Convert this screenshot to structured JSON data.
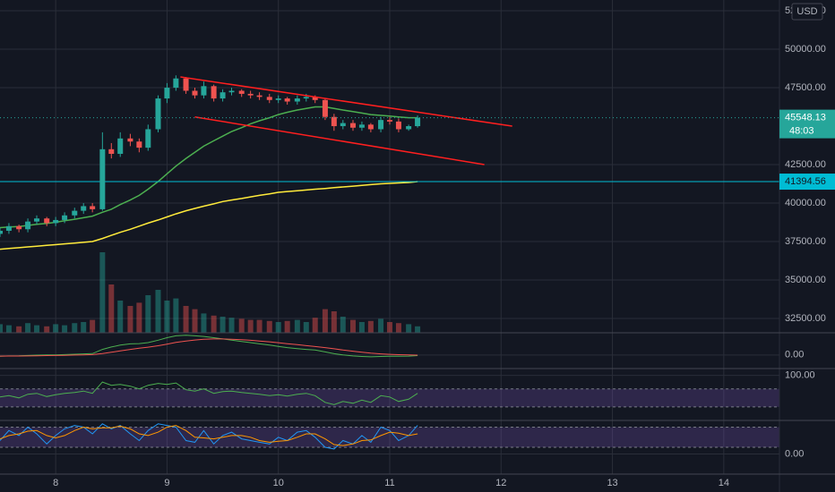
{
  "chart_data": {
    "type": "candlestick",
    "currency": "USD",
    "grid": true,
    "colors": {
      "up": "#26a69a",
      "down": "#ef5350"
    },
    "x": [
      7.5,
      7.58,
      7.67,
      7.75,
      7.83,
      7.92,
      8,
      8.08,
      8.17,
      8.25,
      8.33,
      8.42,
      8.5,
      8.58,
      8.67,
      8.75,
      8.83,
      8.92,
      9,
      9.08,
      9.17,
      9.25,
      9.33,
      9.42,
      9.5,
      9.58,
      9.67,
      9.75,
      9.83,
      9.92,
      10,
      10.08,
      10.17,
      10.25,
      10.33,
      10.42,
      10.5,
      10.58,
      10.67,
      10.75,
      10.83,
      10.92,
      11,
      11.08,
      11.17,
      11.25
    ],
    "open": [
      38000,
      38200,
      38500,
      38300,
      38800,
      39000,
      38700,
      38900,
      39200,
      39500,
      39800,
      39600,
      43500,
      43200,
      44200,
      44000,
      43600,
      44800,
      46800,
      47500,
      48100,
      47300,
      47000,
      47600,
      46800,
      47200,
      47300,
      47100,
      47000,
      46900,
      46700,
      46800,
      46600,
      46800,
      46900,
      46700,
      45600,
      45000,
      45200,
      44900,
      45100,
      44800,
      45400,
      45300,
      44800,
      45000
    ],
    "high": [
      38400,
      38700,
      38600,
      39000,
      39200,
      39100,
      39100,
      39400,
      39700,
      40000,
      40000,
      44600,
      43900,
      44600,
      44500,
      44200,
      45100,
      47000,
      47800,
      48300,
      48200,
      47500,
      47900,
      47700,
      47400,
      47500,
      47400,
      47300,
      47200,
      47100,
      47000,
      46900,
      47000,
      47100,
      47000,
      46800,
      45800,
      45400,
      45400,
      45300,
      45200,
      45600,
      45600,
      45500,
      45100,
      45700
    ],
    "low": [
      37800,
      38000,
      38100,
      38100,
      38600,
      38500,
      38500,
      38700,
      39000,
      39300,
      39400,
      39500,
      42900,
      43000,
      43700,
      43300,
      43400,
      44600,
      46500,
      47300,
      47100,
      46800,
      46800,
      46600,
      46600,
      47000,
      46900,
      46800,
      46700,
      46500,
      46500,
      46400,
      46400,
      46600,
      46500,
      45400,
      44700,
      44800,
      44700,
      44700,
      44600,
      44600,
      45100,
      44600,
      44700,
      44900
    ],
    "close": [
      38200,
      38500,
      38300,
      38800,
      39000,
      38700,
      38900,
      39200,
      39500,
      39800,
      39600,
      43500,
      43200,
      44200,
      44000,
      43600,
      44800,
      46800,
      47500,
      48100,
      47300,
      47000,
      47600,
      46800,
      47200,
      47300,
      47100,
      47000,
      46900,
      46700,
      46800,
      46600,
      46800,
      46900,
      46700,
      45600,
      45000,
      45200,
      44900,
      45100,
      44800,
      45400,
      45300,
      44800,
      45000,
      45548
    ],
    "volume": [
      8,
      7,
      6,
      9,
      7,
      6,
      8,
      7,
      9,
      10,
      12,
      75,
      45,
      30,
      25,
      28,
      35,
      40,
      30,
      32,
      25,
      22,
      18,
      16,
      15,
      14,
      13,
      12,
      12,
      11,
      10,
      11,
      12,
      10,
      14,
      22,
      20,
      15,
      12,
      10,
      11,
      13,
      10,
      9,
      8,
      6
    ],
    "moving_averages": [
      {
        "color": "#4caf50",
        "values": [
          38400,
          38450,
          38480,
          38550,
          38620,
          38680,
          38750,
          38850,
          38950,
          39050,
          39150,
          39400,
          39600,
          39900,
          40200,
          40500,
          40900,
          41400,
          41900,
          42400,
          42900,
          43300,
          43700,
          44050,
          44350,
          44650,
          44900,
          45150,
          45350,
          45550,
          45750,
          45900,
          46050,
          46150,
          46250,
          46250,
          46150,
          46050,
          45950,
          45850,
          45750,
          45700,
          45650,
          45600,
          45550,
          45550
        ]
      },
      {
        "color": "#ffeb3b",
        "values": [
          37000,
          37050,
          37100,
          37150,
          37200,
          37250,
          37300,
          37350,
          37400,
          37450,
          37500,
          37700,
          37900,
          38100,
          38300,
          38500,
          38700,
          38900,
          39100,
          39300,
          39500,
          39650,
          39800,
          39950,
          40100,
          40200,
          40300,
          40400,
          40500,
          40600,
          40700,
          40750,
          40800,
          40850,
          40900,
          40950,
          41000,
          41050,
          41100,
          41150,
          41200,
          41250,
          41280,
          41310,
          41340,
          41394
        ]
      }
    ],
    "trend_lines": [
      {
        "color": "#ff1f1f",
        "x": [
          9.12,
          12.1
        ],
        "y": [
          48200,
          45000
        ]
      },
      {
        "color": "#ff1f1f",
        "x": [
          9.25,
          11.85
        ],
        "y": [
          45600,
          42500
        ]
      }
    ],
    "price_lines": [
      {
        "value": 41394.56,
        "color": "#00bcd4"
      }
    ],
    "last_price": 45548.13,
    "countdown": "48:03",
    "xlim": [
      7.5,
      14.5
    ],
    "xticks": [
      8,
      9,
      10,
      11,
      12,
      13,
      14
    ],
    "ylim": [
      31570,
      53200
    ],
    "yticks": [
      {
        "value": 52500,
        "label": "52500.00"
      },
      {
        "value": 50000,
        "label": "50000.00"
      },
      {
        "value": 47500,
        "label": "47500.00"
      },
      {
        "value": 42500,
        "label": "42500.00"
      },
      {
        "value": 40000,
        "label": "40000.00"
      },
      {
        "value": 37500,
        "label": "37500.00"
      },
      {
        "value": 35000,
        "label": "35000.00"
      },
      {
        "value": 32500,
        "label": "32500.00"
      }
    ],
    "indicators": [
      {
        "type": "macd",
        "ylim": [
          -1100,
          1800
        ],
        "yticks": [
          {
            "value": 0,
            "label": "0.00"
          }
        ],
        "series": [
          {
            "color": "#4caf50",
            "values": [
              -100,
              -80,
              -70,
              -40,
              -10,
              0,
              10,
              30,
              60,
              90,
              110,
              450,
              650,
              800,
              900,
              920,
              1000,
              1200,
              1400,
              1550,
              1600,
              1550,
              1500,
              1400,
              1300,
              1200,
              1100,
              1000,
              900,
              800,
              700,
              600,
              520,
              450,
              400,
              250,
              100,
              0,
              -80,
              -120,
              -150,
              -120,
              -100,
              -110,
              -90,
              -50
            ]
          },
          {
            "color": "#ef5350",
            "values": [
              -90,
              -88,
              -84,
              -75,
              -62,
              -50,
              -38,
              -24,
              -7,
              12,
              31,
              115,
              222,
              337,
              450,
              544,
              635,
              750,
              880,
              1014,
              1131,
              1215,
              1272,
              1298,
              1298,
              1279,
              1243,
              1194,
              1135,
              1068,
              994,
              915,
              836,
              759,
              687,
              600,
              500,
              400,
              304,
              219,
              145,
              92,
              53,
              21,
              -1,
              -11
            ]
          }
        ]
      },
      {
        "type": "rsi",
        "ylim": [
          0,
          115
        ],
        "yticks": [
          {
            "value": 100,
            "label": "100.00"
          }
        ],
        "bands": [
          30,
          70
        ],
        "series": [
          {
            "color": "#4caf50",
            "values": [
              52,
              55,
              50,
              58,
              60,
              53,
              57,
              60,
              62,
              65,
              60,
              85,
              78,
              80,
              76,
              70,
              78,
              82,
              80,
              83,
              68,
              65,
              70,
              60,
              64,
              65,
              62,
              60,
              58,
              55,
              57,
              54,
              58,
              60,
              55,
              40,
              35,
              42,
              38,
              45,
              40,
              55,
              52,
              42,
              47,
              60
            ]
          }
        ]
      },
      {
        "type": "stoch",
        "ylim": [
          -60,
          100
        ],
        "yticks": [
          {
            "value": 0,
            "label": "0.00"
          }
        ],
        "bands": [
          20,
          80
        ],
        "series": [
          {
            "color": "#2196f3",
            "values": [
              40,
              70,
              55,
              80,
              60,
              30,
              55,
              75,
              85,
              80,
              60,
              90,
              75,
              85,
              60,
              40,
              70,
              90,
              85,
              80,
              40,
              35,
              70,
              30,
              55,
              65,
              45,
              40,
              35,
              30,
              50,
              40,
              65,
              70,
              50,
              20,
              15,
              40,
              30,
              55,
              35,
              80,
              70,
              40,
              55,
              85
            ]
          },
          {
            "color": "#ff9800",
            "values": [
              45,
              55,
              60,
              68,
              70,
              55,
              48,
              55,
              70,
              80,
              75,
              78,
              78,
              83,
              75,
              60,
              55,
              65,
              80,
              85,
              70,
              50,
              48,
              45,
              50,
              55,
              55,
              50,
              40,
              35,
              38,
              40,
              50,
              60,
              60,
              45,
              28,
              25,
              30,
              40,
              42,
              55,
              65,
              62,
              55,
              60
            ]
          }
        ]
      }
    ]
  }
}
